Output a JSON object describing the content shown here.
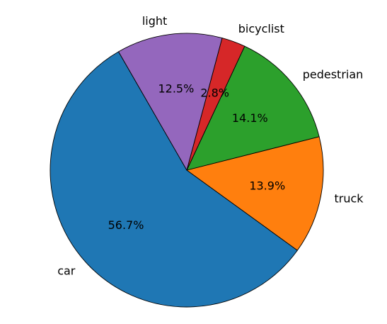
{
  "chart_data": {
    "type": "pie",
    "title": "",
    "start_angle_deg": 120,
    "direction": "counterclockwise",
    "slices": [
      {
        "label": "car",
        "value": 56.7,
        "pct_label": "56.7%",
        "color": "#1f77b4"
      },
      {
        "label": "truck",
        "value": 13.9,
        "pct_label": "13.9%",
        "color": "#ff7f0e"
      },
      {
        "label": "pedestrian",
        "value": 14.1,
        "pct_label": "14.1%",
        "color": "#2ca02c"
      },
      {
        "label": "bicyclist",
        "value": 2.8,
        "pct_label": "2.8%",
        "color": "#d62728"
      },
      {
        "label": "light",
        "value": 12.5,
        "pct_label": "12.5%",
        "color": "#9467bd"
      }
    ]
  }
}
